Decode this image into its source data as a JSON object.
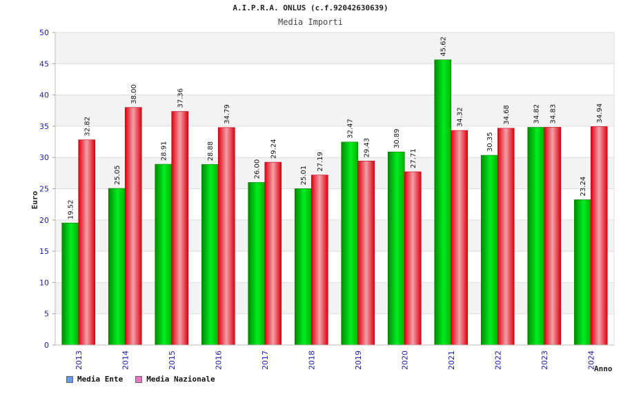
{
  "chart_data": {
    "type": "bar",
    "title": "A.I.P.R.A. ONLUS (c.f.92042630639)",
    "subtitle": "Media Importi",
    "ylabel": "Euro",
    "xlabel": "Anno",
    "ylim": [
      0,
      50
    ],
    "yticks": [
      0,
      5,
      10,
      15,
      20,
      25,
      30,
      35,
      40,
      45,
      50
    ],
    "categories": [
      "2013",
      "2014",
      "2015",
      "2016",
      "2017",
      "2018",
      "2019",
      "2020",
      "2021",
      "2022",
      "2023",
      "2024"
    ],
    "series": [
      {
        "name": "Media Ente",
        "color": "#00cc00",
        "legend_color": "#6699ee",
        "values": [
          19.52,
          25.05,
          28.91,
          28.88,
          26.0,
          25.01,
          32.47,
          30.89,
          45.62,
          30.35,
          34.82,
          23.24
        ],
        "labels": [
          "19.52",
          "25.05",
          "28.91",
          "28.88",
          "26.00",
          "25.01",
          "32.47",
          "30.89",
          "45.62",
          "30.35",
          "34.82",
          "23.24"
        ]
      },
      {
        "name": "Media Nazionale",
        "color": "#ee1122",
        "legend_color": "#e377c2",
        "values": [
          32.82,
          38.0,
          37.36,
          34.79,
          29.24,
          27.19,
          29.43,
          27.71,
          34.32,
          34.68,
          34.83,
          34.94
        ],
        "labels": [
          "32.82",
          "38.00",
          "37.36",
          "34.79",
          "29.24",
          "27.19",
          "29.43",
          "27.71",
          "34.32",
          "34.68",
          "34.83",
          "34.94"
        ]
      }
    ],
    "grid": true,
    "legend_position": "bottom-left"
  }
}
